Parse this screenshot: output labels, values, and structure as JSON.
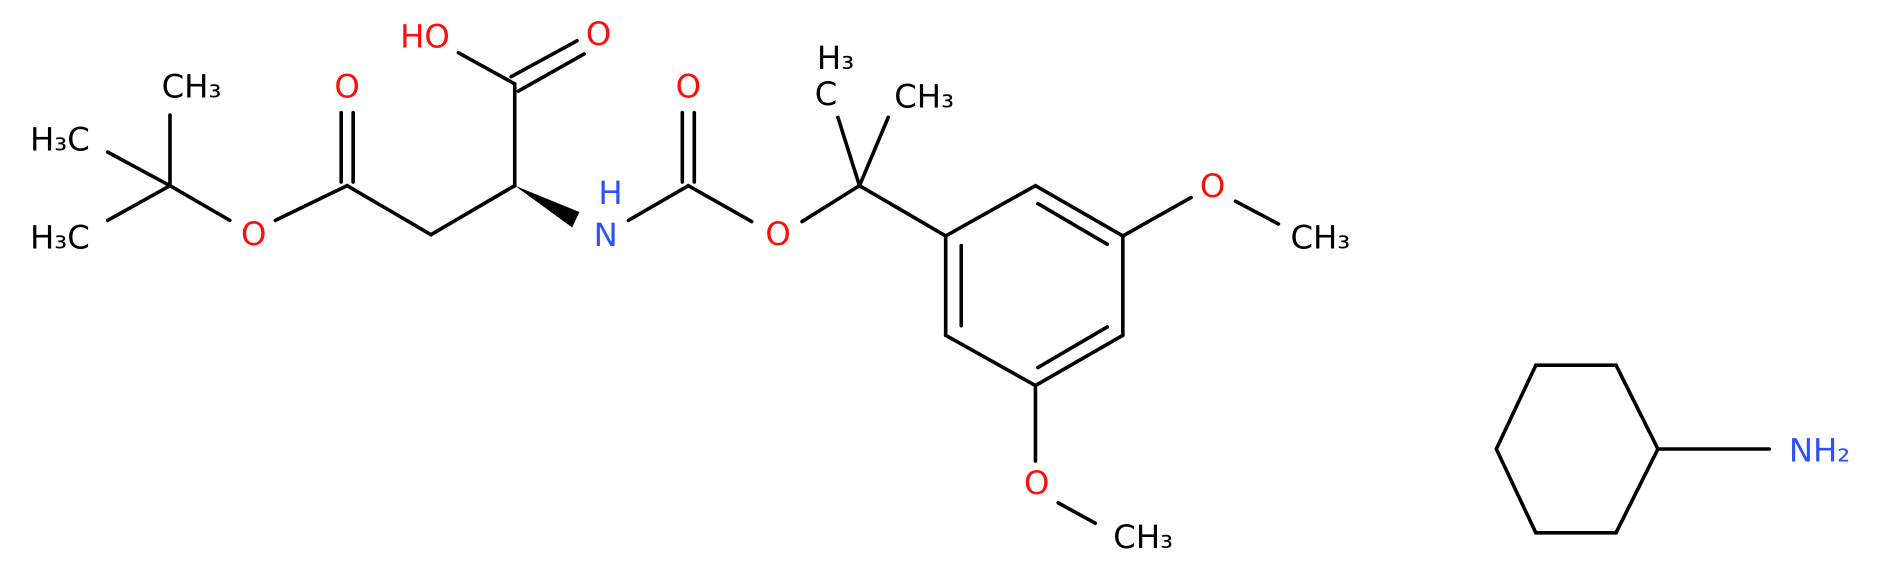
{
  "labels": [
    "HO",
    "O",
    "O",
    "CH₃",
    "H₃C",
    "H₃C",
    "O",
    "H",
    "N",
    "O",
    "O",
    "H₃",
    "C",
    "CH₃",
    "O",
    "CH₃",
    "O",
    "CH₃",
    "NH₂"
  ]
}
